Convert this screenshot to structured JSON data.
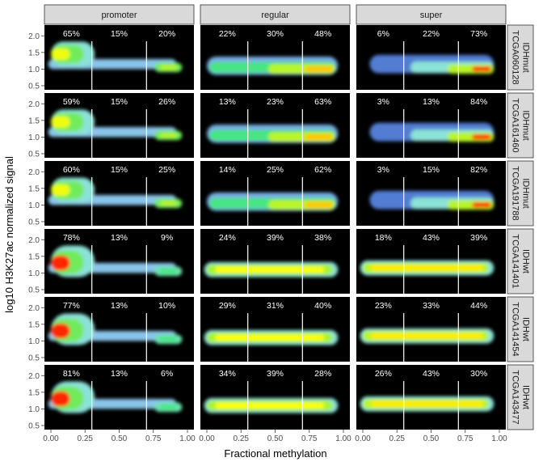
{
  "chart_data": {
    "type": "heatmap",
    "xlabel": "Fractional methylation",
    "ylabel": "log10 H3K27ac normalized signal",
    "xlim": [
      0,
      1
    ],
    "ylim": [
      0.45,
      2.25
    ],
    "x_ticks": [
      "0.00",
      "0.25",
      "0.50",
      "0.75",
      "1.00"
    ],
    "x_tick_values": [
      0,
      0.25,
      0.5,
      0.75,
      1
    ],
    "y_ticks": [
      "0.5",
      "1.0",
      "1.5",
      "2.0"
    ],
    "y_tick_values": [
      0.5,
      1.0,
      1.5,
      2.0
    ],
    "cutoffs": [
      0.3,
      0.7
    ],
    "columns": [
      "promoter",
      "regular",
      "super"
    ],
    "rows": [
      {
        "label": "IDHmut\nTCGA060128",
        "percents": [
          [
            "65%",
            "15%",
            "20%"
          ],
          [
            "22%",
            "30%",
            "48%"
          ],
          [
            "6%",
            "22%",
            "73%"
          ]
        ]
      },
      {
        "label": "IDHmut\nTCGA161460",
        "percents": [
          [
            "59%",
            "15%",
            "26%"
          ],
          [
            "13%",
            "23%",
            "63%"
          ],
          [
            "3%",
            "13%",
            "84%"
          ]
        ]
      },
      {
        "label": "IDHmut\nTCGA191788",
        "percents": [
          [
            "60%",
            "15%",
            "25%"
          ],
          [
            "14%",
            "25%",
            "62%"
          ],
          [
            "3%",
            "15%",
            "82%"
          ]
        ]
      },
      {
        "label": "IDHwt\nTCGA141401",
        "percents": [
          [
            "78%",
            "13%",
            "9%"
          ],
          [
            "24%",
            "39%",
            "38%"
          ],
          [
            "18%",
            "43%",
            "39%"
          ]
        ]
      },
      {
        "label": "IDHwt\nTCGA141454",
        "percents": [
          [
            "77%",
            "13%",
            "10%"
          ],
          [
            "29%",
            "31%",
            "40%"
          ],
          [
            "23%",
            "33%",
            "44%"
          ]
        ]
      },
      {
        "label": "IDHwt\nTCGA143477",
        "percents": [
          [
            "81%",
            "13%",
            "6%"
          ],
          [
            "34%",
            "39%",
            "28%"
          ],
          [
            "26%",
            "43%",
            "30%"
          ]
        ]
      }
    ],
    "grid": false,
    "colors": {
      "panel_bg": "#000000",
      "strip_bg": "#d9d9d9",
      "cutoff_line": "#ffffff",
      "density_low": "#1a0f5c",
      "density_high": "#ff0000"
    }
  }
}
